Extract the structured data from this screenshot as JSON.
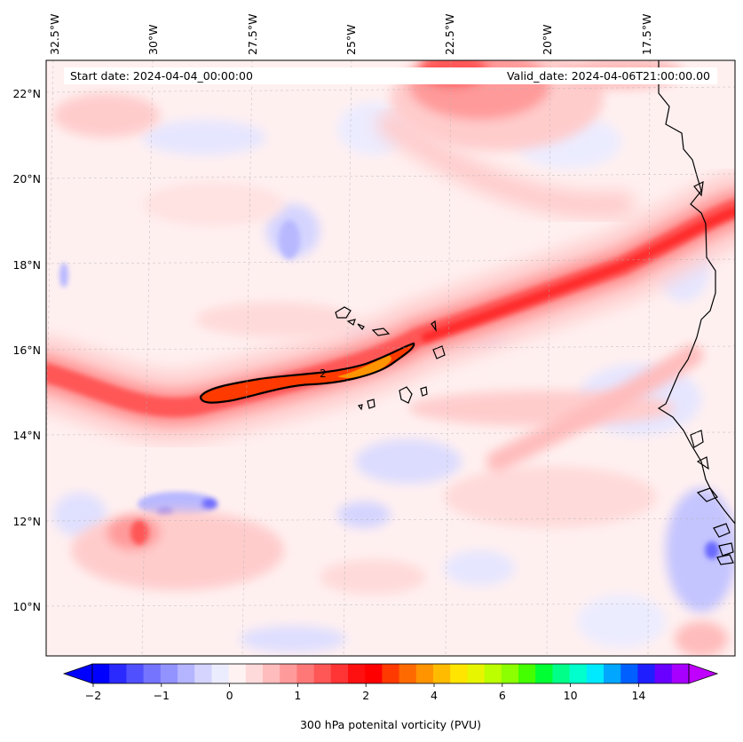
{
  "header": {
    "start_date": "Start date: 2024-04-04_00:00:00",
    "valid_date": "Valid_date: 2024-04-06T21:00:00.00"
  },
  "longitude_labels": [
    "32.5°W",
    "30°W",
    "27.5°W",
    "25°W",
    "22.5°W",
    "20°W",
    "17.5°W"
  ],
  "latitude_labels": [
    "22°N",
    "20°N",
    "18°N",
    "16°N",
    "14°N",
    "12°N",
    "10°N"
  ],
  "contour_label": "2",
  "colorbar": {
    "title": "300 hPa potenital vorticity (PVU)",
    "tick_labels": [
      "−2",
      "−1",
      "0",
      "1",
      "2",
      "4",
      "6",
      "10",
      "14"
    ],
    "colors": [
      "#0000ff",
      "#2a2aff",
      "#5050ff",
      "#7474ff",
      "#9393ff",
      "#b4b4ff",
      "#d4d4ff",
      "#ececff",
      "#fff2f2",
      "#ffdada",
      "#ffbcbc",
      "#ff9a9a",
      "#ff7878",
      "#ff5656",
      "#ff3434",
      "#ff1010",
      "#ff0000",
      "#ff3a00",
      "#ff6a00",
      "#ff9300",
      "#ffbb00",
      "#ffe500",
      "#e8f500",
      "#bbff00",
      "#8cff00",
      "#44ff00",
      "#00ff33",
      "#00ff88",
      "#00ffcc",
      "#00eaff",
      "#00a6ff",
      "#0060ff",
      "#1e1eff",
      "#6a00ff",
      "#a800ff"
    ],
    "extend_low_color": "#0000ff",
    "extend_high_color": "#c000ff"
  },
  "colors": {
    "background_field": "#fff0f0",
    "band_light": "#ffcccc",
    "band_mid": "#ff8a8a",
    "band_core": "#ff1f1f",
    "band_peak": "#ff3a00",
    "band_max": "#ff9300",
    "negative_light": "#e6e6ff",
    "negative_mid": "#b8b8ff",
    "negative_strong": "#5a5aff",
    "coast": "#000000",
    "grid": "#bbbbbb"
  }
}
